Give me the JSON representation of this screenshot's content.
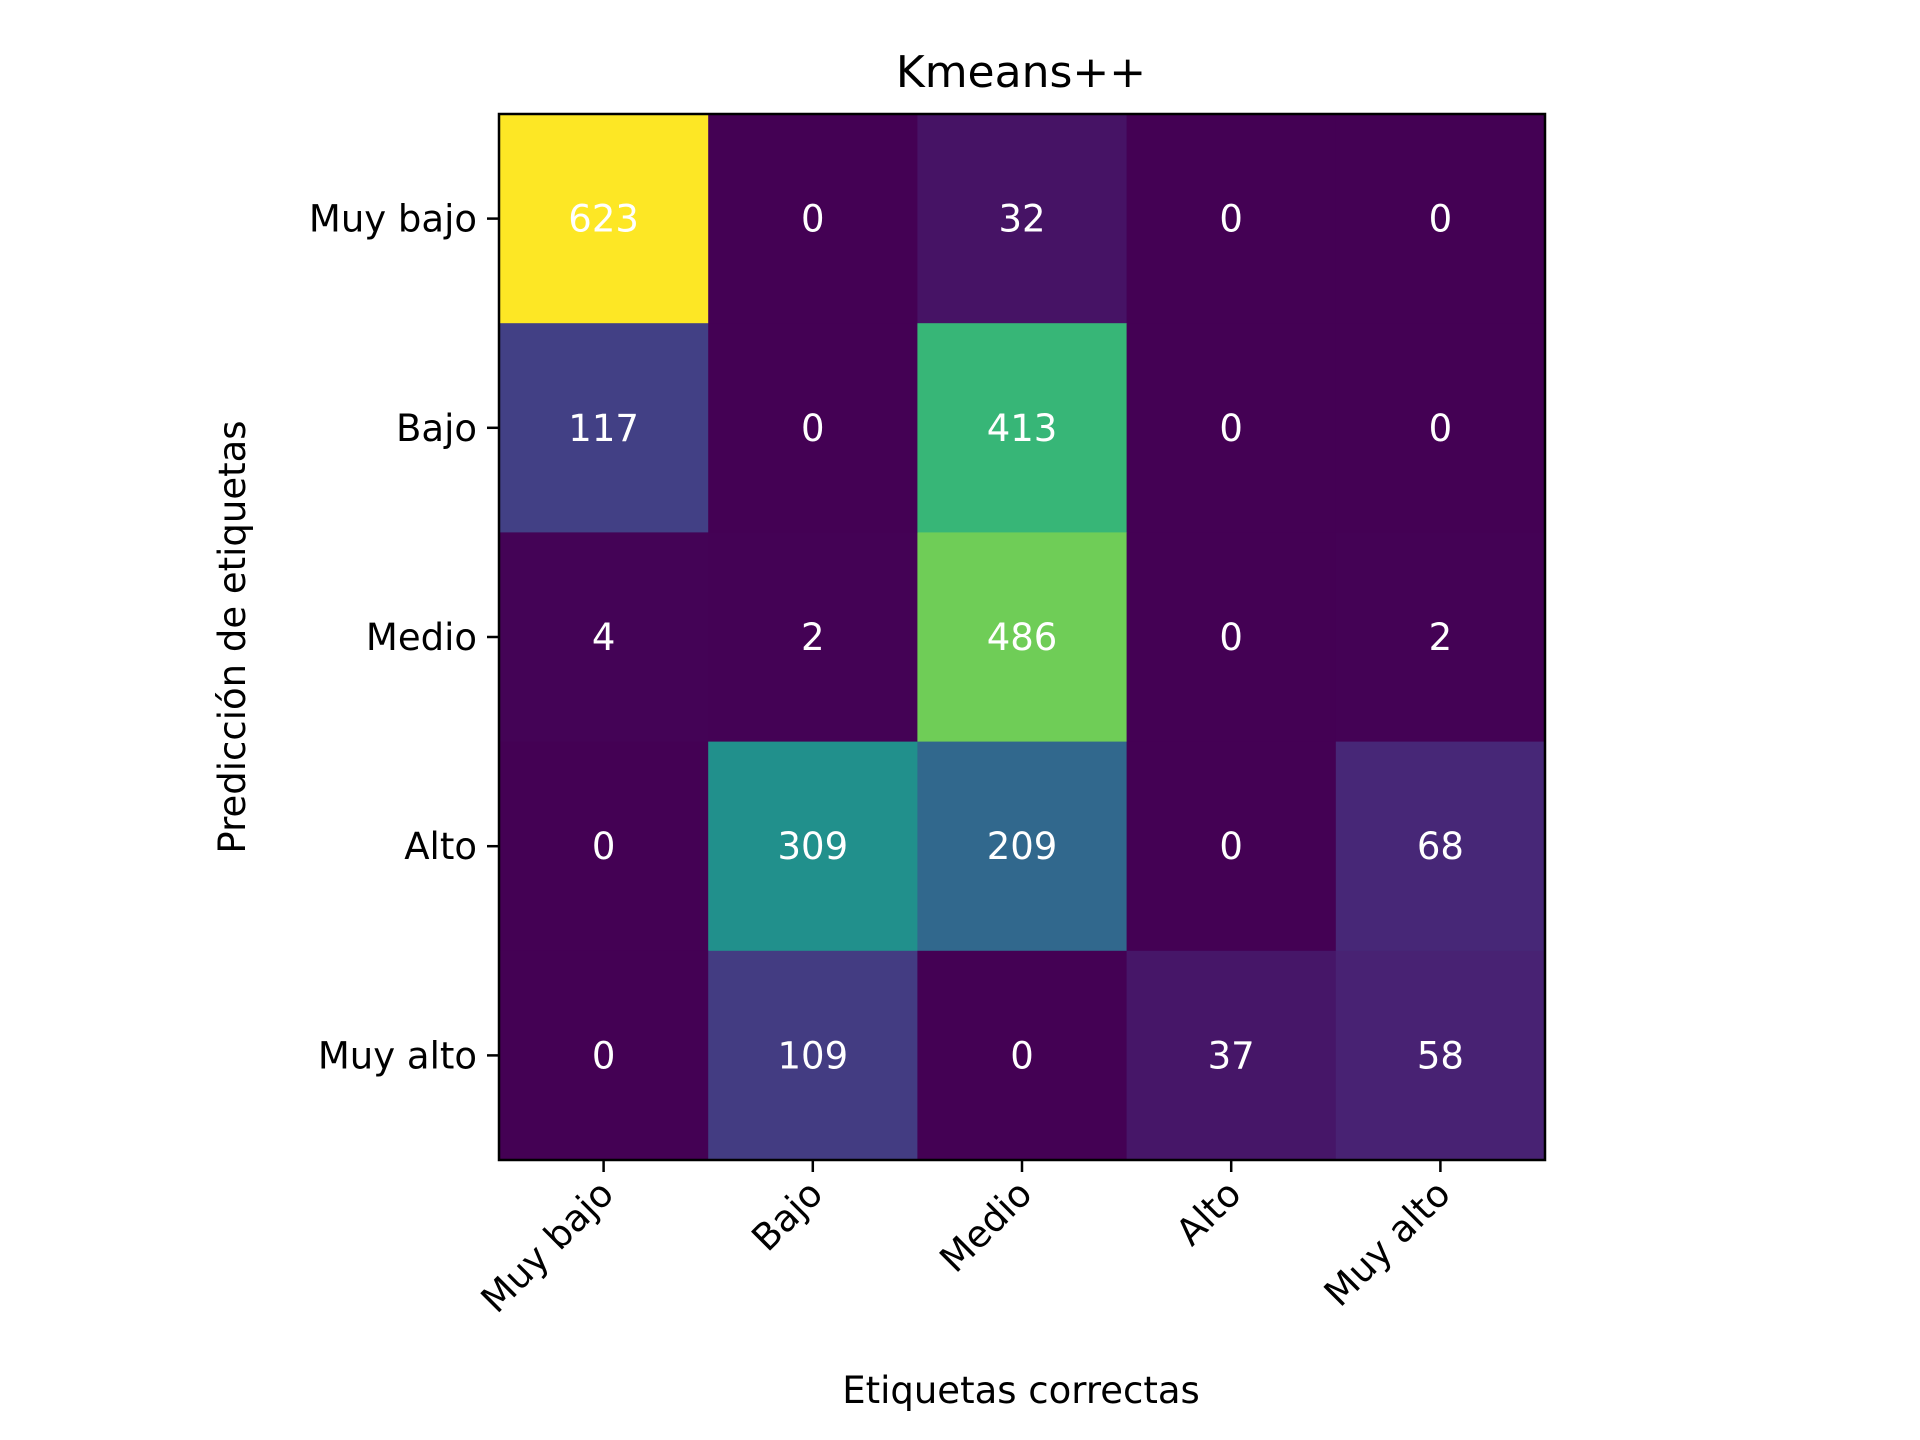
{
  "chart_data": {
    "type": "heatmap",
    "title": "Kmeans++",
    "xlabel": "Etiquetas correctas",
    "ylabel": "Predicción de etiquetas",
    "x_categories": [
      "Muy bajo",
      "Bajo",
      "Medio",
      "Alto",
      "Muy alto"
    ],
    "y_categories": [
      "Muy bajo",
      "Bajo",
      "Medio",
      "Alto",
      "Muy alto"
    ],
    "matrix": [
      [
        623,
        0,
        32,
        0,
        0
      ],
      [
        117,
        0,
        413,
        0,
        0
      ],
      [
        4,
        2,
        486,
        0,
        2
      ],
      [
        0,
        309,
        209,
        0,
        68
      ],
      [
        0,
        109,
        0,
        37,
        58
      ]
    ],
    "colormap": "viridis",
    "value_range": [
      0,
      623
    ],
    "colors": {
      "low": "#440154",
      "high": "#fde725",
      "text_on_cells": "#ffffff",
      "frame": "#000000"
    },
    "grid": false
  }
}
